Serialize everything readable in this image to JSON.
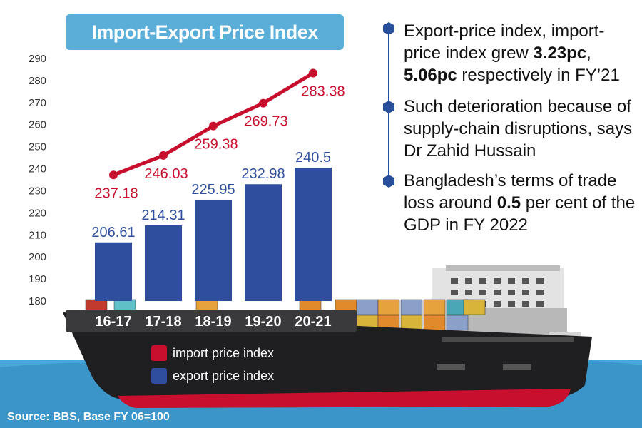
{
  "colors": {
    "import": "#c8102e",
    "export": "#2f4f9e",
    "title_bg": "#5aaed8",
    "sea": "#4aa6d6",
    "hull": "#1f1f22",
    "hull_red": "#c8102e"
  },
  "title": "Import-Export Price Index",
  "bullets": [
    {
      "parts": [
        "Export-price index, import-price index grew ",
        "3.23pc",
        ", ",
        "5.06pc",
        " respectively in FY’21"
      ]
    },
    {
      "parts": [
        "Such deterioration because of supply-chain disruptions, says Dr Zahid Hussain"
      ]
    },
    {
      "parts": [
        "Bangladesh’s terms of trade loss around ",
        "0.5",
        " per cent of the GDP in FY 2022"
      ]
    }
  ],
  "legend": {
    "import_label": "import price index",
    "export_label": "export price index"
  },
  "source": "Source: BBS, Base FY 06=100",
  "chart_data": {
    "type": "bar",
    "title": "Import-Export Price Index",
    "categories": [
      "16-17",
      "17-18",
      "18-19",
      "19-20",
      "20-21"
    ],
    "series": [
      {
        "name": "export price index",
        "type": "bar",
        "values": [
          206.61,
          214.31,
          225.95,
          232.98,
          240.5
        ],
        "labels": [
          "206.61",
          "214.31",
          "225.95",
          "232.98",
          "240.5"
        ]
      },
      {
        "name": "import price index",
        "type": "line",
        "values": [
          237.18,
          246.03,
          259.38,
          269.73,
          283.38
        ],
        "labels": [
          "237.18",
          "246.03",
          "259.38",
          "269.73",
          "283.38"
        ]
      }
    ],
    "yticks": [
      "180",
      "190",
      "200",
      "210",
      "220",
      "230",
      "240",
      "250",
      "260",
      "270",
      "280",
      "290"
    ],
    "ylim": [
      180,
      290
    ],
    "xlabel": "",
    "ylabel": "",
    "legend_position": "bottom-left"
  }
}
